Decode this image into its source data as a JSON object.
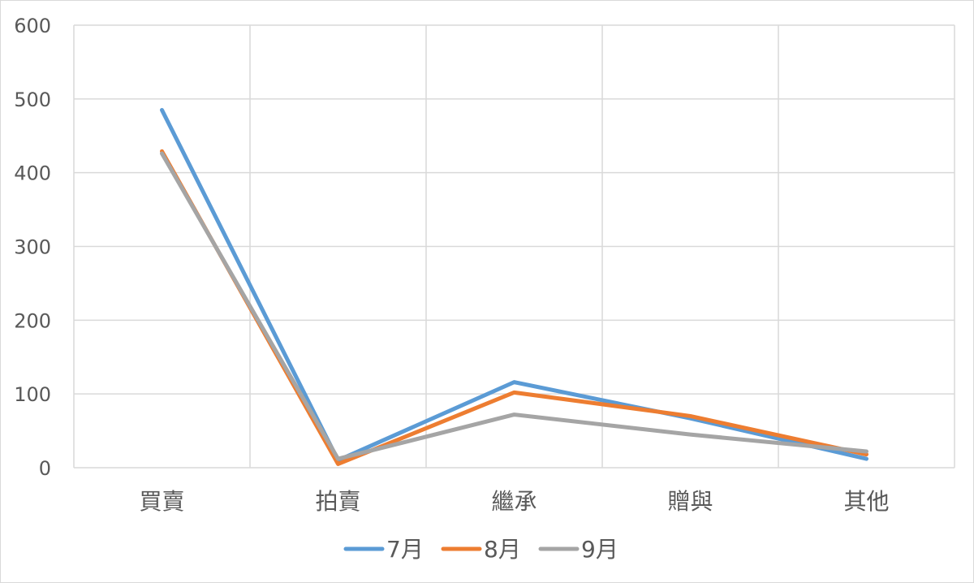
{
  "chart_data": {
    "type": "line",
    "title": "",
    "xlabel": "",
    "ylabel": "",
    "categories": [
      "買賣",
      "拍賣",
      "繼承",
      "贈與",
      "其他"
    ],
    "ylim": [
      0,
      600
    ],
    "yticks": [
      0,
      100,
      200,
      300,
      400,
      500,
      600
    ],
    "grid": {
      "horizontal": true,
      "vertical": true
    },
    "legend_position": "bottom",
    "series": [
      {
        "name": "7月",
        "color": "#5b9bd5",
        "values": [
          485,
          10,
          116,
          67,
          12
        ]
      },
      {
        "name": "8月",
        "color": "#ed7d31",
        "values": [
          429,
          5,
          102,
          70,
          18
        ]
      },
      {
        "name": "9月",
        "color": "#a5a5a5",
        "values": [
          426,
          12,
          72,
          45,
          22
        ]
      }
    ]
  }
}
